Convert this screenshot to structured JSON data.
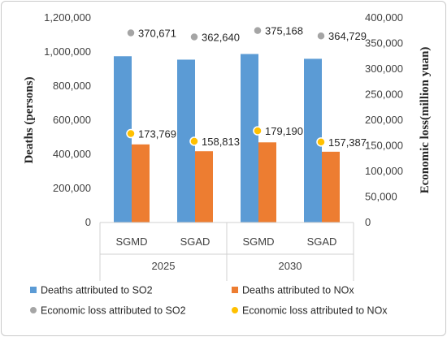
{
  "chart_data": {
    "type": "bar",
    "title": "",
    "groups": [
      {
        "label": "2025",
        "categories": [
          "SGMD",
          "SGAD"
        ]
      },
      {
        "label": "2030",
        "categories": [
          "SGMD",
          "SGAD"
        ]
      }
    ],
    "categories": [
      "SGMD",
      "SGAD",
      "SGMD",
      "SGAD"
    ],
    "ylabel": "Deaths (persons)",
    "ylim": [
      0,
      1200000
    ],
    "yticks": [
      "0",
      "200,000",
      "400,000",
      "600,000",
      "800,000",
      "1,000,000",
      "1,200,000"
    ],
    "y2label": "Economic loss(million yuan)",
    "y2lim": [
      0,
      400000
    ],
    "y2ticks": [
      "0",
      "50,000",
      "100,000",
      "150,000",
      "200,000",
      "250,000",
      "300,000",
      "350,000",
      "400,000"
    ],
    "series": [
      {
        "name": "Deaths attributed to SO2",
        "type": "bar",
        "axis": "left",
        "color": "#5b9bd5",
        "values": [
          975000,
          955000,
          988000,
          960000
        ]
      },
      {
        "name": "Deaths attributed to  NOx",
        "type": "bar",
        "axis": "left",
        "color": "#ed7d31",
        "values": [
          458000,
          418000,
          470000,
          415000
        ]
      },
      {
        "name": "Economic loss attributed to SO2",
        "type": "scatter",
        "axis": "right",
        "color": "#a5a5a5",
        "values": [
          370671,
          362640,
          375168,
          364729
        ],
        "labels": [
          "370,671",
          "362,640",
          "375,168",
          "364,729"
        ]
      },
      {
        "name": "Economic loss attributed to NOx",
        "type": "scatter",
        "axis": "right",
        "color": "#ffc000",
        "values": [
          173769,
          158813,
          179190,
          157387
        ],
        "labels": [
          "173,769",
          "158,813",
          "179,190",
          "157,387"
        ]
      }
    ],
    "legend": "bottom",
    "grid": false
  }
}
